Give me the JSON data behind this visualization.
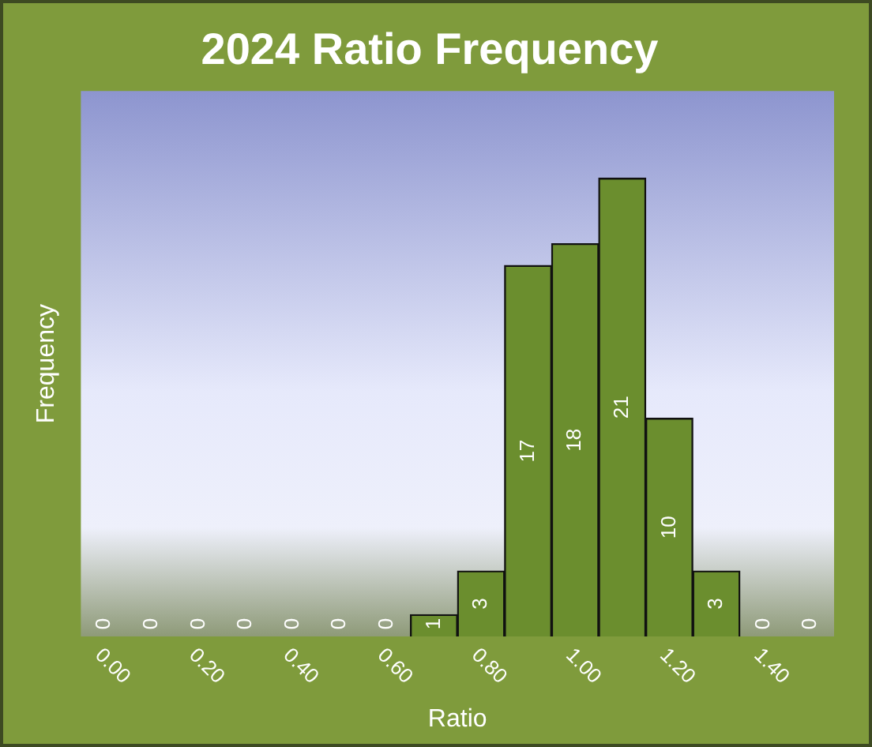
{
  "chart_data": {
    "type": "bar",
    "title": "2024 Ratio Frequency",
    "xlabel": "Ratio",
    "ylabel": "Frequency",
    "categories": [
      "0.00",
      null,
      "0.20",
      null,
      "0.40",
      null,
      "0.60",
      null,
      "0.80",
      null,
      "1.00",
      null,
      "1.20",
      null,
      "1.40",
      null
    ],
    "values": [
      0,
      0,
      0,
      0,
      0,
      0,
      0,
      1,
      3,
      17,
      18,
      21,
      10,
      3,
      0,
      0
    ],
    "color": "#6b8e2e",
    "data_labels": true,
    "legend": false,
    "grid": false,
    "tick_labels": "x"
  }
}
